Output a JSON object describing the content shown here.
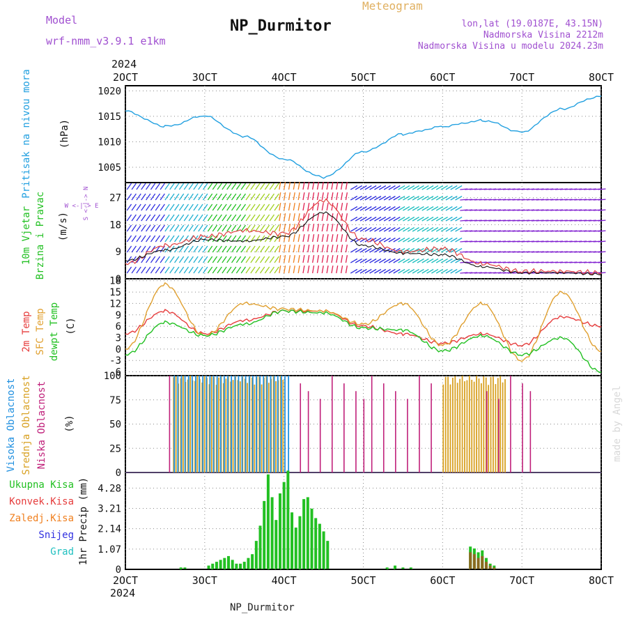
{
  "header": {
    "model_label": "Model",
    "model_name": "wrf-nmm_v3.9.1 e1km",
    "title": "NP_Durmitor",
    "subtitle": "Meteogram",
    "lonlat": "lon,lat (19.0187E, 43.15N)",
    "elevation": "Nadmorska Visina 2212m",
    "elevation_model": "Nadmorska Visina u modelu 2024.23m",
    "year": "2024",
    "footer_station": "NP_Durmitor",
    "watermark": "made by Angel"
  },
  "colors": {
    "pressure": "#22a0e0",
    "t2m": "#e63c3c",
    "tsfc": "#e0a030",
    "dewpoint": "#22c022",
    "cloud_high": "#2090e0",
    "cloud_mid": "#d8a020",
    "cloud_low": "#c0207a",
    "precip_total": "#22c022",
    "precip_conv": "#e63c3c",
    "precip_frz": "#f08020",
    "snow": "#3030e0",
    "hail": "#20c0c0"
  },
  "chart_data": [
    {
      "id": "pressure",
      "type": "line",
      "ylabel_left": "Pritisak na nivou mora",
      "unit": "(hPa)",
      "yticks": [
        "1005",
        "1010",
        "1015",
        "1020"
      ],
      "ylim": [
        1002,
        1021
      ],
      "x_days": [
        2,
        2.5,
        3,
        3.5,
        4,
        4.5,
        5,
        5.5,
        6,
        6.5,
        7,
        7.5,
        8
      ],
      "values": [
        1016,
        1013,
        1015,
        1011,
        1006.5,
        1003,
        1008,
        1011.5,
        1013,
        1014.2,
        1012,
        1016.5,
        1019
      ],
      "xticks": [
        "2OCT",
        "3OCT",
        "4OCT",
        "5OCT",
        "6OCT",
        "7OCT",
        "8OCT"
      ]
    },
    {
      "id": "wind",
      "type": "line",
      "ylabel_left_1": "10m Vjetar",
      "ylabel_left_2": "Brzina i Pravac",
      "unit": "(m/s)",
      "compass": "W <-|-> E",
      "compass_ns": "S <-|-> N",
      "yticks": [
        "0",
        "9",
        "18",
        "27"
      ],
      "ylim": [
        0,
        32
      ],
      "x_days": [
        2,
        2.5,
        3,
        3.5,
        4,
        4.5,
        5,
        5.5,
        6,
        6.5,
        7,
        7.5,
        8
      ],
      "speed": [
        6,
        9.5,
        13,
        12.5,
        14,
        22,
        11,
        8.5,
        8,
        4,
        2,
        2,
        1.5
      ],
      "gust": [
        5,
        11,
        14,
        16,
        15,
        26,
        13,
        9,
        10,
        5,
        2.5,
        2.5,
        2
      ]
    },
    {
      "id": "temperature",
      "type": "line",
      "ylabel_1": "2m Temp",
      "ylabel_2": "SFC Temp",
      "ylabel_3": "dewpt Temp",
      "unit": "(C)",
      "yticks": [
        "-6",
        "-3",
        "0",
        "3",
        "6",
        "9",
        "12",
        "15",
        "18"
      ],
      "ylim": [
        -7,
        18.5
      ],
      "x_days": [
        2,
        2.5,
        3,
        3.5,
        4,
        4.5,
        5,
        5.5,
        6,
        6.5,
        7,
        7.5,
        8
      ],
      "series": [
        {
          "key": "t2m",
          "values": [
            4,
            10,
            4,
            7.5,
            10,
            10,
            6,
            4,
            1.5,
            4,
            1,
            8.5,
            6
          ]
        },
        {
          "key": "tsfc",
          "values": [
            0,
            17,
            3.5,
            12,
            10.5,
            10,
            6.5,
            12,
            1,
            12,
            -3,
            15,
            -0.5
          ]
        },
        {
          "key": "dewpoint",
          "values": [
            -1.5,
            7,
            3.5,
            6.5,
            10,
            9.5,
            5.5,
            5,
            -0.5,
            3.5,
            -1.5,
            3,
            -6
          ]
        }
      ]
    },
    {
      "id": "cloud",
      "type": "bar",
      "ylabel_1": "Visoka Oblacnost",
      "ylabel_2": "Srednja Oblacnost",
      "ylabel_3": "Niska Oblacnost",
      "unit": "(%)",
      "yticks": [
        "0",
        "25",
        "50",
        "75",
        "100"
      ],
      "ylim": [
        0,
        100
      ],
      "mid_cover": [
        {
          "from": 2.6,
          "to": 4.0,
          "value": 100
        },
        {
          "from": 6.0,
          "to": 6.8,
          "value": 100
        }
      ],
      "high_cover": [
        {
          "from": 2.6,
          "to": 4.05,
          "value": 100
        }
      ],
      "low_cover_days": [
        2.55,
        4.2,
        4.3,
        4.45,
        4.6,
        4.75,
        4.9,
        5.0,
        5.1,
        5.25,
        5.4,
        5.55,
        5.7,
        5.85,
        6.55,
        6.7,
        6.85,
        7.0,
        7.1
      ]
    },
    {
      "id": "precip",
      "type": "bar",
      "legend": [
        "Ukupna Kisa",
        "Konvek.Kisa",
        "Zaledj.Kisa",
        "Snijeg",
        "Grad"
      ],
      "ylabel_right": "1hr Precip (mm)",
      "yticks": [
        "1.07",
        "2.14",
        "3.21",
        "4.28"
      ],
      "ylim": [
        0,
        5.1
      ],
      "x_days": [
        2.7,
        2.75,
        3.05,
        3.1,
        3.15,
        3.2,
        3.25,
        3.3,
        3.35,
        3.4,
        3.45,
        3.5,
        3.55,
        3.6,
        3.65,
        3.7,
        3.75,
        3.8,
        3.85,
        3.9,
        3.95,
        4.0,
        4.05,
        4.1,
        4.15,
        4.2,
        4.25,
        4.3,
        4.35,
        4.4,
        4.45,
        4.5,
        4.55,
        5.3,
        5.4,
        5.5,
        5.6,
        6.35,
        6.4,
        6.45,
        6.5,
        6.55,
        6.6,
        6.65
      ],
      "total": [
        0.1,
        0.1,
        0.2,
        0.3,
        0.4,
        0.5,
        0.6,
        0.7,
        0.5,
        0.3,
        0.3,
        0.4,
        0.6,
        0.8,
        1.5,
        2.3,
        3.6,
        5.0,
        3.8,
        2.6,
        4.0,
        4.6,
        5.2,
        3.0,
        2.2,
        2.8,
        3.7,
        3.8,
        3.2,
        2.7,
        2.4,
        2.0,
        1.5,
        0.1,
        0.2,
        0.1,
        0.1,
        1.2,
        1.1,
        0.9,
        1.0,
        0.6,
        0.3,
        0.2
      ],
      "conv": [
        0,
        0,
        0,
        0,
        0,
        0,
        0,
        0,
        0,
        0,
        0,
        0,
        0,
        0,
        0,
        0,
        0,
        0,
        0,
        0,
        0,
        0,
        0,
        0,
        0,
        0,
        0,
        0,
        0,
        0,
        0,
        0,
        0,
        0,
        0,
        0,
        0,
        0.9,
        0.8,
        0.6,
        0.7,
        0.4,
        0.2,
        0.1
      ]
    }
  ]
}
